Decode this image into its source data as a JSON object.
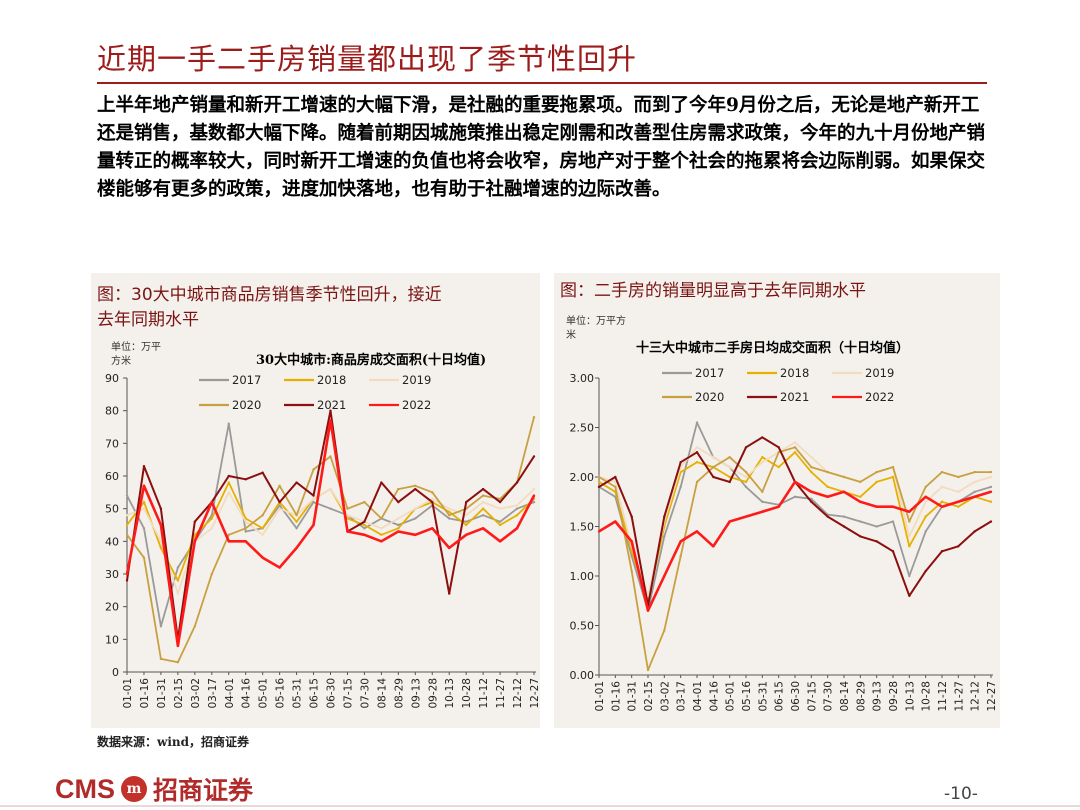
{
  "slide": {
    "title": "近期一手二手房销量都出现了季节性回升",
    "body": "上半年地产销量和新开工增速的大幅下滑，是社融的重要拖累项。而到了今年9月份之后，无论是地产新开工还是销售，基数都大幅下降。随着前期因城施策推出稳定刚需和改善型住房需求政策，今年的九十月份地产销量转正的概率较大，同时新开工增速的负值也将会收窄，房地产对于整个社会的拖累将会边际削弱。如果保交楼能够有更多的政策，进度加快落地，也有助于社融增速的边际改善。",
    "source": "数据来源：wind，招商证券",
    "page_number": "-10-",
    "logo_text_en": "CMS",
    "logo_seal": "m",
    "logo_text_cn": "招商证券"
  },
  "colors": {
    "title_red": "#9c1b1b",
    "series": {
      "2017": "#9a9a9a",
      "2018": "#e6b000",
      "2019": "#f2dcc0",
      "2020": "#c8a040",
      "2021": "#8b0f0f",
      "2022": "#ff1a1a"
    }
  },
  "left_panel": {
    "caption_line1": "图：30大中城市商品房销售季节性回升，接近",
    "caption_line2": "去年同期水平",
    "unit_line1": "单位：万平",
    "unit_line2": "方米"
  },
  "right_panel": {
    "caption": "图：二手房的销量明显高于去年同期水平",
    "unit_line1": "单位：万平方",
    "unit_line2": "米"
  },
  "chart_data": [
    {
      "type": "line",
      "title": "30大中城市:商品房成交面积(十日均值)",
      "ylabel": "单位：万平方米",
      "ylim": [
        0,
        90
      ],
      "yticks": [
        "0",
        "10",
        "20",
        "30",
        "40",
        "50",
        "60",
        "70",
        "80",
        "90"
      ],
      "categories": [
        "01-01",
        "01-16",
        "01-31",
        "02-15",
        "03-02",
        "03-17",
        "04-01",
        "04-16",
        "05-01",
        "05-16",
        "05-31",
        "06-15",
        "06-30",
        "07-15",
        "07-30",
        "08-14",
        "08-29",
        "09-13",
        "09-28",
        "10-13",
        "10-28",
        "11-12",
        "11-27",
        "12-12",
        "12-27"
      ],
      "legend": [
        "2017",
        "2018",
        "2019",
        "2020",
        "2021",
        "2022"
      ],
      "legend_position": "top",
      "series": [
        {
          "name": "2017",
          "values": [
            54,
            44,
            14,
            32,
            40,
            48,
            76,
            43,
            44,
            51,
            44,
            52,
            50,
            48,
            44,
            47,
            45,
            47,
            51,
            47,
            46,
            48,
            46,
            50,
            52
          ]
        },
        {
          "name": "2018",
          "values": [
            45,
            52,
            38,
            28,
            42,
            47,
            58,
            47,
            44,
            52,
            46,
            53,
            56,
            47,
            45,
            42,
            44,
            50,
            52,
            49,
            45,
            50,
            45,
            48,
            53
          ]
        },
        {
          "name": "2019",
          "values": [
            48,
            50,
            40,
            24,
            40,
            44,
            55,
            46,
            42,
            50,
            48,
            53,
            56,
            48,
            46,
            44,
            47,
            50,
            53,
            50,
            48,
            52,
            50,
            51,
            56
          ]
        },
        {
          "name": "2020",
          "values": [
            42,
            35,
            4,
            3,
            14,
            30,
            42,
            44,
            48,
            57,
            48,
            62,
            66,
            50,
            52,
            47,
            56,
            57,
            55,
            48,
            50,
            54,
            53,
            58,
            78
          ]
        },
        {
          "name": "2021",
          "values": [
            28,
            63,
            50,
            10,
            46,
            52,
            60,
            59,
            61,
            52,
            58,
            54,
            80,
            43,
            46,
            58,
            52,
            56,
            52,
            24,
            52,
            56,
            52,
            58,
            66
          ]
        },
        {
          "name": "2022",
          "values": [
            30,
            57,
            45,
            8,
            40,
            52,
            40,
            40,
            35,
            32,
            38,
            45,
            77,
            43,
            42,
            40,
            43,
            42,
            44,
            38,
            42,
            44,
            40,
            44,
            54
          ]
        }
      ]
    },
    {
      "type": "line",
      "title": "十三大中城市二手房日均成交面积（十日均值）",
      "ylabel": "单位：万平方米",
      "ylim": [
        0,
        3
      ],
      "yticks": [
        "0.00",
        "0.50",
        "1.00",
        "1.50",
        "2.00",
        "2.50",
        "3.00"
      ],
      "categories": [
        "01-01",
        "01-16",
        "01-31",
        "02-15",
        "03-02",
        "03-17",
        "04-01",
        "04-16",
        "05-01",
        "05-16",
        "05-31",
        "06-15",
        "06-30",
        "07-15",
        "07-30",
        "08-14",
        "08-29",
        "09-13",
        "09-28",
        "10-13",
        "10-28",
        "11-12",
        "11-27",
        "12-12",
        "12-27"
      ],
      "legend": [
        "2017",
        "2018",
        "2019",
        "2020",
        "2021",
        "2022"
      ],
      "legend_position": "top",
      "series": [
        {
          "name": "2017",
          "values": [
            1.9,
            1.8,
            1.2,
            0.65,
            1.4,
            1.9,
            2.55,
            2.2,
            2.1,
            1.9,
            1.75,
            1.72,
            1.8,
            1.78,
            1.62,
            1.6,
            1.55,
            1.5,
            1.55,
            1.0,
            1.45,
            1.7,
            1.75,
            1.85,
            1.9
          ]
        },
        {
          "name": "2018",
          "values": [
            1.95,
            1.85,
            1.25,
            0.75,
            1.5,
            2.05,
            2.15,
            2.1,
            2.0,
            1.95,
            2.2,
            2.1,
            2.25,
            2.05,
            1.9,
            1.85,
            1.8,
            1.95,
            2.0,
            1.3,
            1.6,
            1.75,
            1.7,
            1.8,
            1.75
          ]
        },
        {
          "name": "2019",
          "values": [
            2.0,
            1.95,
            1.3,
            0.8,
            1.55,
            2.1,
            2.3,
            2.2,
            2.1,
            2.0,
            2.15,
            2.25,
            2.35,
            2.2,
            2.05,
            2.0,
            1.95,
            2.05,
            2.1,
            1.4,
            1.75,
            1.9,
            1.85,
            1.95,
            2.0
          ]
        },
        {
          "name": "2020",
          "values": [
            2.0,
            1.9,
            1.05,
            0.05,
            0.45,
            1.2,
            1.95,
            2.1,
            2.2,
            2.05,
            1.85,
            2.25,
            2.3,
            2.1,
            2.05,
            2.0,
            1.95,
            2.05,
            2.1,
            1.55,
            1.9,
            2.05,
            2.0,
            2.05,
            2.05
          ]
        },
        {
          "name": "2021",
          "values": [
            1.9,
            2.0,
            1.6,
            0.7,
            1.6,
            2.15,
            2.25,
            2.0,
            1.95,
            2.3,
            2.4,
            2.3,
            1.95,
            1.75,
            1.6,
            1.5,
            1.4,
            1.35,
            1.25,
            0.8,
            1.05,
            1.25,
            1.3,
            1.45,
            1.55
          ]
        },
        {
          "name": "2022",
          "values": [
            1.45,
            1.55,
            1.35,
            0.65,
            1.0,
            1.35,
            1.45,
            1.3,
            1.55,
            1.6,
            1.65,
            1.7,
            1.95,
            1.85,
            1.8,
            1.85,
            1.75,
            1.7,
            1.7,
            1.65,
            1.8,
            1.7,
            1.75,
            1.8,
            1.85
          ]
        }
      ]
    }
  ]
}
